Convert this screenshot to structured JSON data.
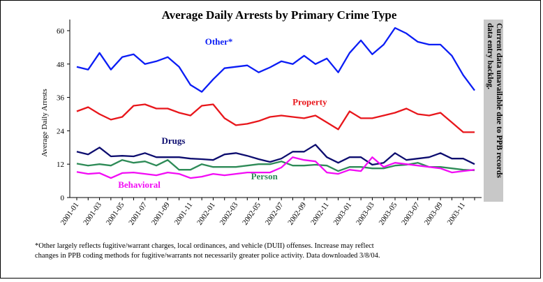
{
  "chart_data": {
    "type": "line",
    "title": "Average Daily Arrests by Primary Crime Type",
    "ylabel": "Average Daily Arrests",
    "xlabel": "",
    "ylim": [
      0,
      64
    ],
    "yticks": [
      0,
      12,
      24,
      36,
      48,
      60
    ],
    "grid": false,
    "side_note": [
      "Current data unavailable due to PPB records",
      "data entry backlog."
    ],
    "categories": [
      "2001-01",
      "2001-02",
      "2001-03",
      "2001-04",
      "2001-05",
      "2001-06",
      "2001-07",
      "2001-08",
      "2001-09",
      "2001-10",
      "2001-11",
      "2001-12",
      "2002-01",
      "2002-02",
      "2002-03",
      "2002-04",
      "2002-05",
      "2002-06",
      "2002-07",
      "2002-08",
      "2002-09",
      "2002-10",
      "2002-11",
      "2002-12",
      "2003-01",
      "2003-02",
      "2003-03",
      "2003-04",
      "2003-05",
      "2003-06",
      "2003-07",
      "2003-08",
      "2003-09",
      "2003-10",
      "2003-11",
      "2003-12"
    ],
    "xtick_labels": [
      "2001-01",
      "2001-03",
      "2001-05",
      "2001-07",
      "2001-09",
      "2001-11",
      "2002-01",
      "2002-03",
      "2002-05",
      "2002-07",
      "2002-09",
      "2002-11",
      "2003-01",
      "2003-03",
      "2003-05",
      "2003-07",
      "2003-09",
      "2003-11"
    ],
    "series": [
      {
        "name": "Other*",
        "color": "#0b1df5",
        "values": [
          47,
          46,
          52,
          46,
          50.5,
          51.5,
          48,
          49,
          50.5,
          47,
          40.5,
          38,
          42.5,
          46.5,
          47,
          47.5,
          45,
          46.8,
          49,
          48,
          51,
          48,
          50,
          45,
          52,
          56.5,
          51.5,
          55,
          61,
          59,
          56,
          55,
          55,
          51,
          44,
          38.5
        ]
      },
      {
        "name": "Property",
        "color": "#e8161b",
        "values": [
          31,
          32.5,
          30,
          28,
          29,
          33,
          33.5,
          32,
          32,
          30.5,
          29.5,
          33,
          33.5,
          28.5,
          26,
          26.5,
          27.5,
          29,
          29.5,
          29,
          28.5,
          29.5,
          27,
          24.5,
          31,
          28.5,
          28.5,
          29.5,
          30.5,
          32,
          30,
          29.5,
          30.5,
          27,
          23.5,
          23.5
        ]
      },
      {
        "name": "Drugs",
        "color": "#0d0d6f",
        "values": [
          16.5,
          15.5,
          18,
          14.8,
          15,
          14.8,
          16,
          14.5,
          14.5,
          14.5,
          14,
          13.8,
          13.5,
          15.5,
          16,
          15,
          13.8,
          12.8,
          14,
          16.5,
          16.5,
          19,
          14.5,
          12.5,
          14.5,
          14.5,
          11.8,
          12.5,
          16,
          13.5,
          14,
          14.5,
          16,
          14,
          14,
          12
        ]
      },
      {
        "name": "Person",
        "color": "#2e8b57",
        "values": [
          12.2,
          11.5,
          12,
          11.5,
          13.5,
          12.5,
          13,
          11.5,
          13.5,
          10,
          10,
          12,
          11,
          11,
          11,
          11.5,
          12,
          12,
          13,
          11.5,
          11.5,
          11.8,
          11.5,
          9.5,
          11,
          11,
          10.5,
          10.5,
          11.5,
          11.8,
          12.5,
          11,
          11,
          10.5,
          10,
          9.8
        ]
      },
      {
        "name": "Behavioral",
        "color": "#f20cf5",
        "values": [
          9.2,
          8.5,
          8.8,
          7,
          8.8,
          9,
          8.5,
          8,
          9,
          8.5,
          7,
          7.5,
          8.5,
          8,
          8.5,
          9,
          9,
          9,
          10.8,
          14.5,
          13.5,
          13,
          9,
          8.5,
          10,
          9.5,
          14.5,
          11,
          12.5,
          12,
          11.5,
          11,
          10.5,
          9,
          9.5,
          10
        ]
      }
    ]
  },
  "footnote": {
    "line1": "*Other largely reflects fugitive/warrant charges, local ordinances, and vehicle (DUII) offenses. Increase may reflect",
    "line2": "changes in PPB coding methods for fugitive/warrants not necessarily greater police activity. Data downloaded 3/8/04."
  }
}
